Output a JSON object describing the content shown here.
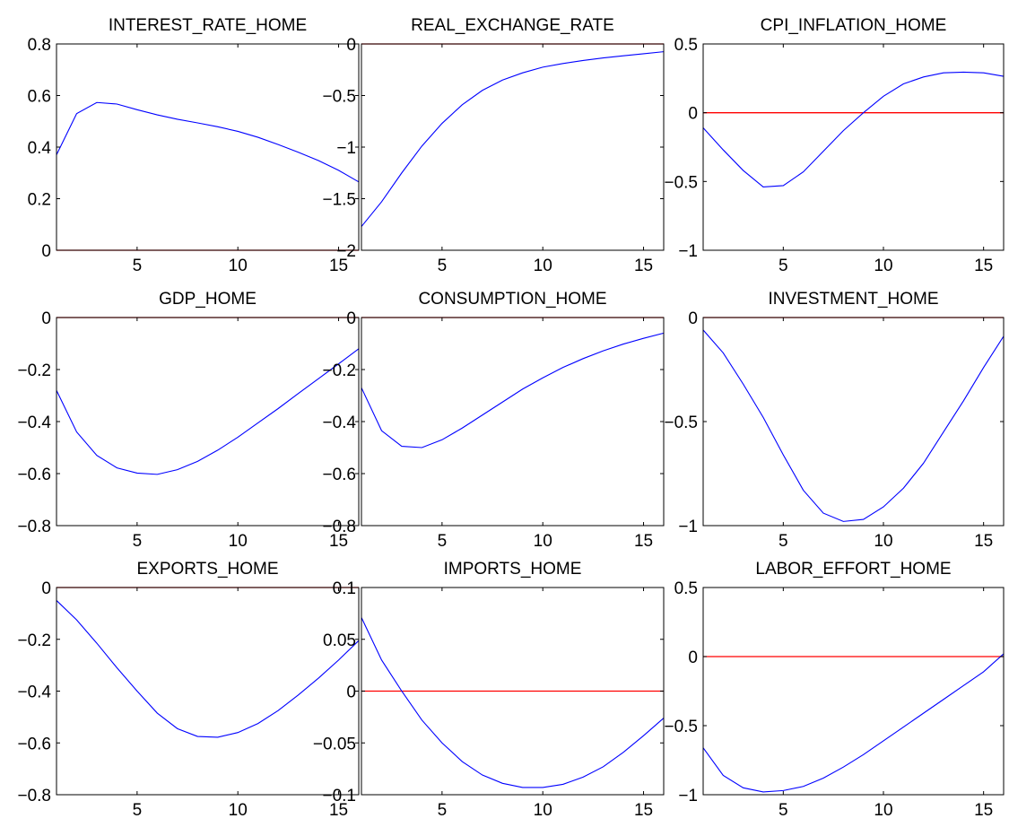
{
  "chart_data": [
    {
      "type": "line",
      "title": "INTEREST_RATE_HOME",
      "x": [
        1,
        2,
        3,
        4,
        5,
        6,
        7,
        8,
        9,
        10,
        11,
        12,
        13,
        14,
        15,
        16
      ],
      "xlim": [
        1,
        16
      ],
      "xticks": [
        5,
        10,
        15
      ],
      "ylim": [
        0,
        0.8
      ],
      "yticks": [
        0,
        0.2,
        0.4,
        0.6,
        0.8
      ],
      "ytick_labels": [
        "0",
        "0.2",
        "0.4",
        "0.6",
        "0.8"
      ],
      "zero_line": 0,
      "line_color": "#0000ff",
      "zero_color": "#ff0000",
      "series": [
        {
          "values": [
            0.37,
            0.53,
            0.573,
            0.567,
            0.545,
            0.525,
            0.508,
            0.494,
            0.479,
            0.461,
            0.438,
            0.41,
            0.38,
            0.348,
            0.31,
            0.265
          ]
        }
      ]
    },
    {
      "type": "line",
      "title": "REAL_EXCHANGE_RATE",
      "x": [
        1,
        2,
        3,
        4,
        5,
        6,
        7,
        8,
        9,
        10,
        11,
        12,
        13,
        14,
        15,
        16
      ],
      "xlim": [
        1,
        16
      ],
      "xticks": [
        5,
        10,
        15
      ],
      "ylim": [
        -2,
        0
      ],
      "yticks": [
        -2,
        -1.5,
        -1,
        -0.5,
        0
      ],
      "ytick_labels": [
        "−2",
        "−1.5",
        "−1",
        "−0.5",
        "0"
      ],
      "zero_line": 0,
      "line_color": "#0000ff",
      "zero_color": "#ff0000",
      "series": [
        {
          "values": [
            -1.77,
            -1.53,
            -1.25,
            -0.99,
            -0.77,
            -0.59,
            -0.45,
            -0.35,
            -0.28,
            -0.225,
            -0.19,
            -0.16,
            -0.135,
            -0.115,
            -0.095,
            -0.075
          ]
        }
      ]
    },
    {
      "type": "line",
      "title": "CPI_INFLATION_HOME",
      "x": [
        1,
        2,
        3,
        4,
        5,
        6,
        7,
        8,
        9,
        10,
        11,
        12,
        13,
        14,
        15,
        16
      ],
      "xlim": [
        1,
        16
      ],
      "xticks": [
        5,
        10,
        15
      ],
      "ylim": [
        -1,
        0.5
      ],
      "yticks": [
        -1,
        -0.5,
        0,
        0.5
      ],
      "ytick_labels": [
        "−1",
        "−0.5",
        "0",
        "0.5"
      ],
      "zero_line": 0,
      "line_color": "#0000ff",
      "zero_color": "#ff0000",
      "series": [
        {
          "values": [
            -0.11,
            -0.27,
            -0.42,
            -0.54,
            -0.53,
            -0.43,
            -0.28,
            -0.13,
            0.0,
            0.12,
            0.21,
            0.26,
            0.29,
            0.295,
            0.29,
            0.265
          ]
        }
      ]
    },
    {
      "type": "line",
      "title": "GDP_HOME",
      "x": [
        1,
        2,
        3,
        4,
        5,
        6,
        7,
        8,
        9,
        10,
        11,
        12,
        13,
        14,
        15,
        16
      ],
      "xlim": [
        1,
        16
      ],
      "xticks": [
        5,
        10,
        15
      ],
      "ylim": [
        -0.8,
        0
      ],
      "yticks": [
        -0.8,
        -0.6,
        -0.4,
        -0.2,
        0
      ],
      "ytick_labels": [
        "−0.8",
        "−0.6",
        "−0.4",
        "−0.2",
        "0"
      ],
      "zero_line": 0,
      "line_color": "#0000ff",
      "zero_color": "#ff0000",
      "series": [
        {
          "values": [
            -0.28,
            -0.44,
            -0.53,
            -0.578,
            -0.598,
            -0.603,
            -0.585,
            -0.553,
            -0.51,
            -0.46,
            -0.405,
            -0.35,
            -0.292,
            -0.235,
            -0.178,
            -0.12
          ]
        }
      ]
    },
    {
      "type": "line",
      "title": "CONSUMPTION_HOME",
      "x": [
        1,
        2,
        3,
        4,
        5,
        6,
        7,
        8,
        9,
        10,
        11,
        12,
        13,
        14,
        15,
        16
      ],
      "xlim": [
        1,
        16
      ],
      "xticks": [
        5,
        10,
        15
      ],
      "ylim": [
        -0.8,
        0
      ],
      "yticks": [
        -0.8,
        -0.6,
        -0.4,
        -0.2,
        0
      ],
      "ytick_labels": [
        "−0.8",
        "−0.6",
        "−0.4",
        "−0.2",
        "0"
      ],
      "zero_line": 0,
      "line_color": "#0000ff",
      "zero_color": "#ff0000",
      "series": [
        {
          "values": [
            -0.27,
            -0.435,
            -0.495,
            -0.5,
            -0.47,
            -0.425,
            -0.375,
            -0.325,
            -0.275,
            -0.232,
            -0.192,
            -0.158,
            -0.128,
            -0.102,
            -0.08,
            -0.06
          ]
        }
      ]
    },
    {
      "type": "line",
      "title": "INVESTMENT_HOME",
      "x": [
        1,
        2,
        3,
        4,
        5,
        6,
        7,
        8,
        9,
        10,
        11,
        12,
        13,
        14,
        15,
        16
      ],
      "xlim": [
        1,
        16
      ],
      "xticks": [
        5,
        10,
        15
      ],
      "ylim": [
        -1,
        0
      ],
      "yticks": [
        -1,
        -0.5,
        0
      ],
      "ytick_labels": [
        "−1",
        "−0.5",
        "0"
      ],
      "zero_line": 0,
      "line_color": "#0000ff",
      "zero_color": "#ff0000",
      "series": [
        {
          "values": [
            -0.06,
            -0.17,
            -0.32,
            -0.48,
            -0.66,
            -0.83,
            -0.94,
            -0.98,
            -0.97,
            -0.91,
            -0.82,
            -0.7,
            -0.55,
            -0.4,
            -0.24,
            -0.09
          ]
        }
      ]
    },
    {
      "type": "line",
      "title": "EXPORTS_HOME",
      "x": [
        1,
        2,
        3,
        4,
        5,
        6,
        7,
        8,
        9,
        10,
        11,
        12,
        13,
        14,
        15,
        16
      ],
      "xlim": [
        1,
        16
      ],
      "xticks": [
        5,
        10,
        15
      ],
      "ylim": [
        -0.8,
        0
      ],
      "yticks": [
        -0.8,
        -0.6,
        -0.4,
        -0.2,
        0
      ],
      "ytick_labels": [
        "−0.8",
        "−0.6",
        "−0.4",
        "−0.2",
        "0"
      ],
      "zero_line": 0,
      "line_color": "#0000ff",
      "zero_color": "#ff0000",
      "series": [
        {
          "values": [
            -0.05,
            -0.125,
            -0.215,
            -0.31,
            -0.4,
            -0.485,
            -0.545,
            -0.575,
            -0.578,
            -0.56,
            -0.525,
            -0.475,
            -0.415,
            -0.35,
            -0.28,
            -0.205
          ]
        }
      ]
    },
    {
      "type": "line",
      "title": "IMPORTS_HOME",
      "x": [
        1,
        2,
        3,
        4,
        5,
        6,
        7,
        8,
        9,
        10,
        11,
        12,
        13,
        14,
        15,
        16
      ],
      "xlim": [
        1,
        16
      ],
      "xticks": [
        5,
        10,
        15
      ],
      "ylim": [
        -0.1,
        0.1
      ],
      "yticks": [
        -0.1,
        -0.05,
        0,
        0.05,
        0.1
      ],
      "ytick_labels": [
        "−0.1",
        "−0.05",
        "0",
        "0.05",
        "0.1"
      ],
      "zero_line": 0,
      "line_color": "#0000ff",
      "zero_color": "#ff0000",
      "series": [
        {
          "values": [
            0.071,
            0.03,
            0.0,
            -0.028,
            -0.05,
            -0.068,
            -0.081,
            -0.089,
            -0.093,
            -0.093,
            -0.09,
            -0.083,
            -0.073,
            -0.059,
            -0.043,
            -0.026
          ]
        }
      ]
    },
    {
      "type": "line",
      "title": "LABOR_EFFORT_HOME",
      "x": [
        1,
        2,
        3,
        4,
        5,
        6,
        7,
        8,
        9,
        10,
        11,
        12,
        13,
        14,
        15,
        16
      ],
      "xlim": [
        1,
        16
      ],
      "xticks": [
        5,
        10,
        15
      ],
      "ylim": [
        -1,
        0.5
      ],
      "yticks": [
        -1,
        -0.5,
        0,
        0.5
      ],
      "ytick_labels": [
        "−1",
        "−0.5",
        "0",
        "0.5"
      ],
      "zero_line": 0,
      "line_color": "#0000ff",
      "zero_color": "#ff0000",
      "series": [
        {
          "values": [
            -0.66,
            -0.86,
            -0.95,
            -0.98,
            -0.97,
            -0.94,
            -0.88,
            -0.8,
            -0.71,
            -0.61,
            -0.51,
            -0.41,
            -0.31,
            -0.21,
            -0.11,
            0.02
          ]
        }
      ]
    }
  ]
}
